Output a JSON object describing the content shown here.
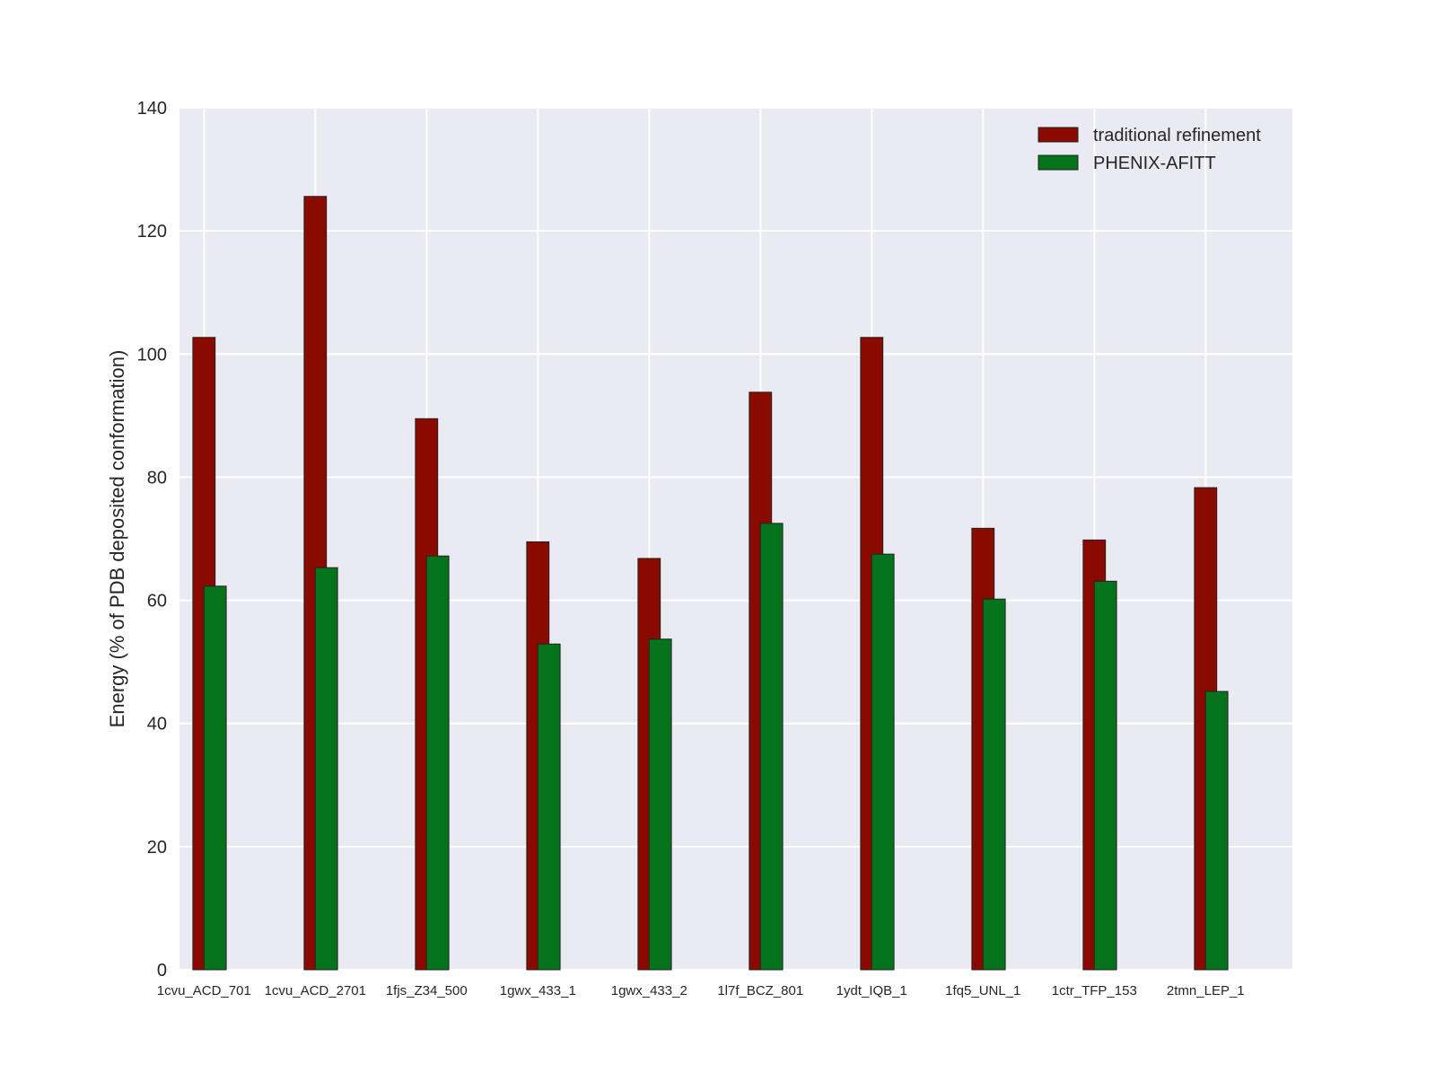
{
  "chart_data": {
    "type": "bar",
    "title": "",
    "xlabel": "",
    "ylabel": "Energy (% of PDB deposited conformation)",
    "ylim": [
      0,
      140
    ],
    "yticks": [
      0,
      20,
      40,
      60,
      80,
      100,
      120,
      140
    ],
    "grid": true,
    "legend_position": "top-right",
    "categories": [
      "1cvu_ACD_701",
      "1cvu_ACD_2701",
      "1fjs_Z34_500",
      "1gwx_433_1",
      "1gwx_433_2",
      "1l7f_BCZ_801",
      "1ydt_IQB_1",
      "1fq5_UNL_1",
      "1ctr_TFP_153",
      "2tmn_LEP_1"
    ],
    "series": [
      {
        "name": "traditional refinement",
        "color": "#8b0a00",
        "values": [
          102.7,
          125.6,
          89.5,
          69.5,
          66.8,
          93.8,
          102.7,
          71.7,
          69.8,
          78.3
        ]
      },
      {
        "name": "PHENIX-AFITT",
        "color": "#05731c",
        "values": [
          62.3,
          65.3,
          67.2,
          52.9,
          53.7,
          72.5,
          67.5,
          60.2,
          63.1,
          45.2
        ]
      }
    ]
  }
}
